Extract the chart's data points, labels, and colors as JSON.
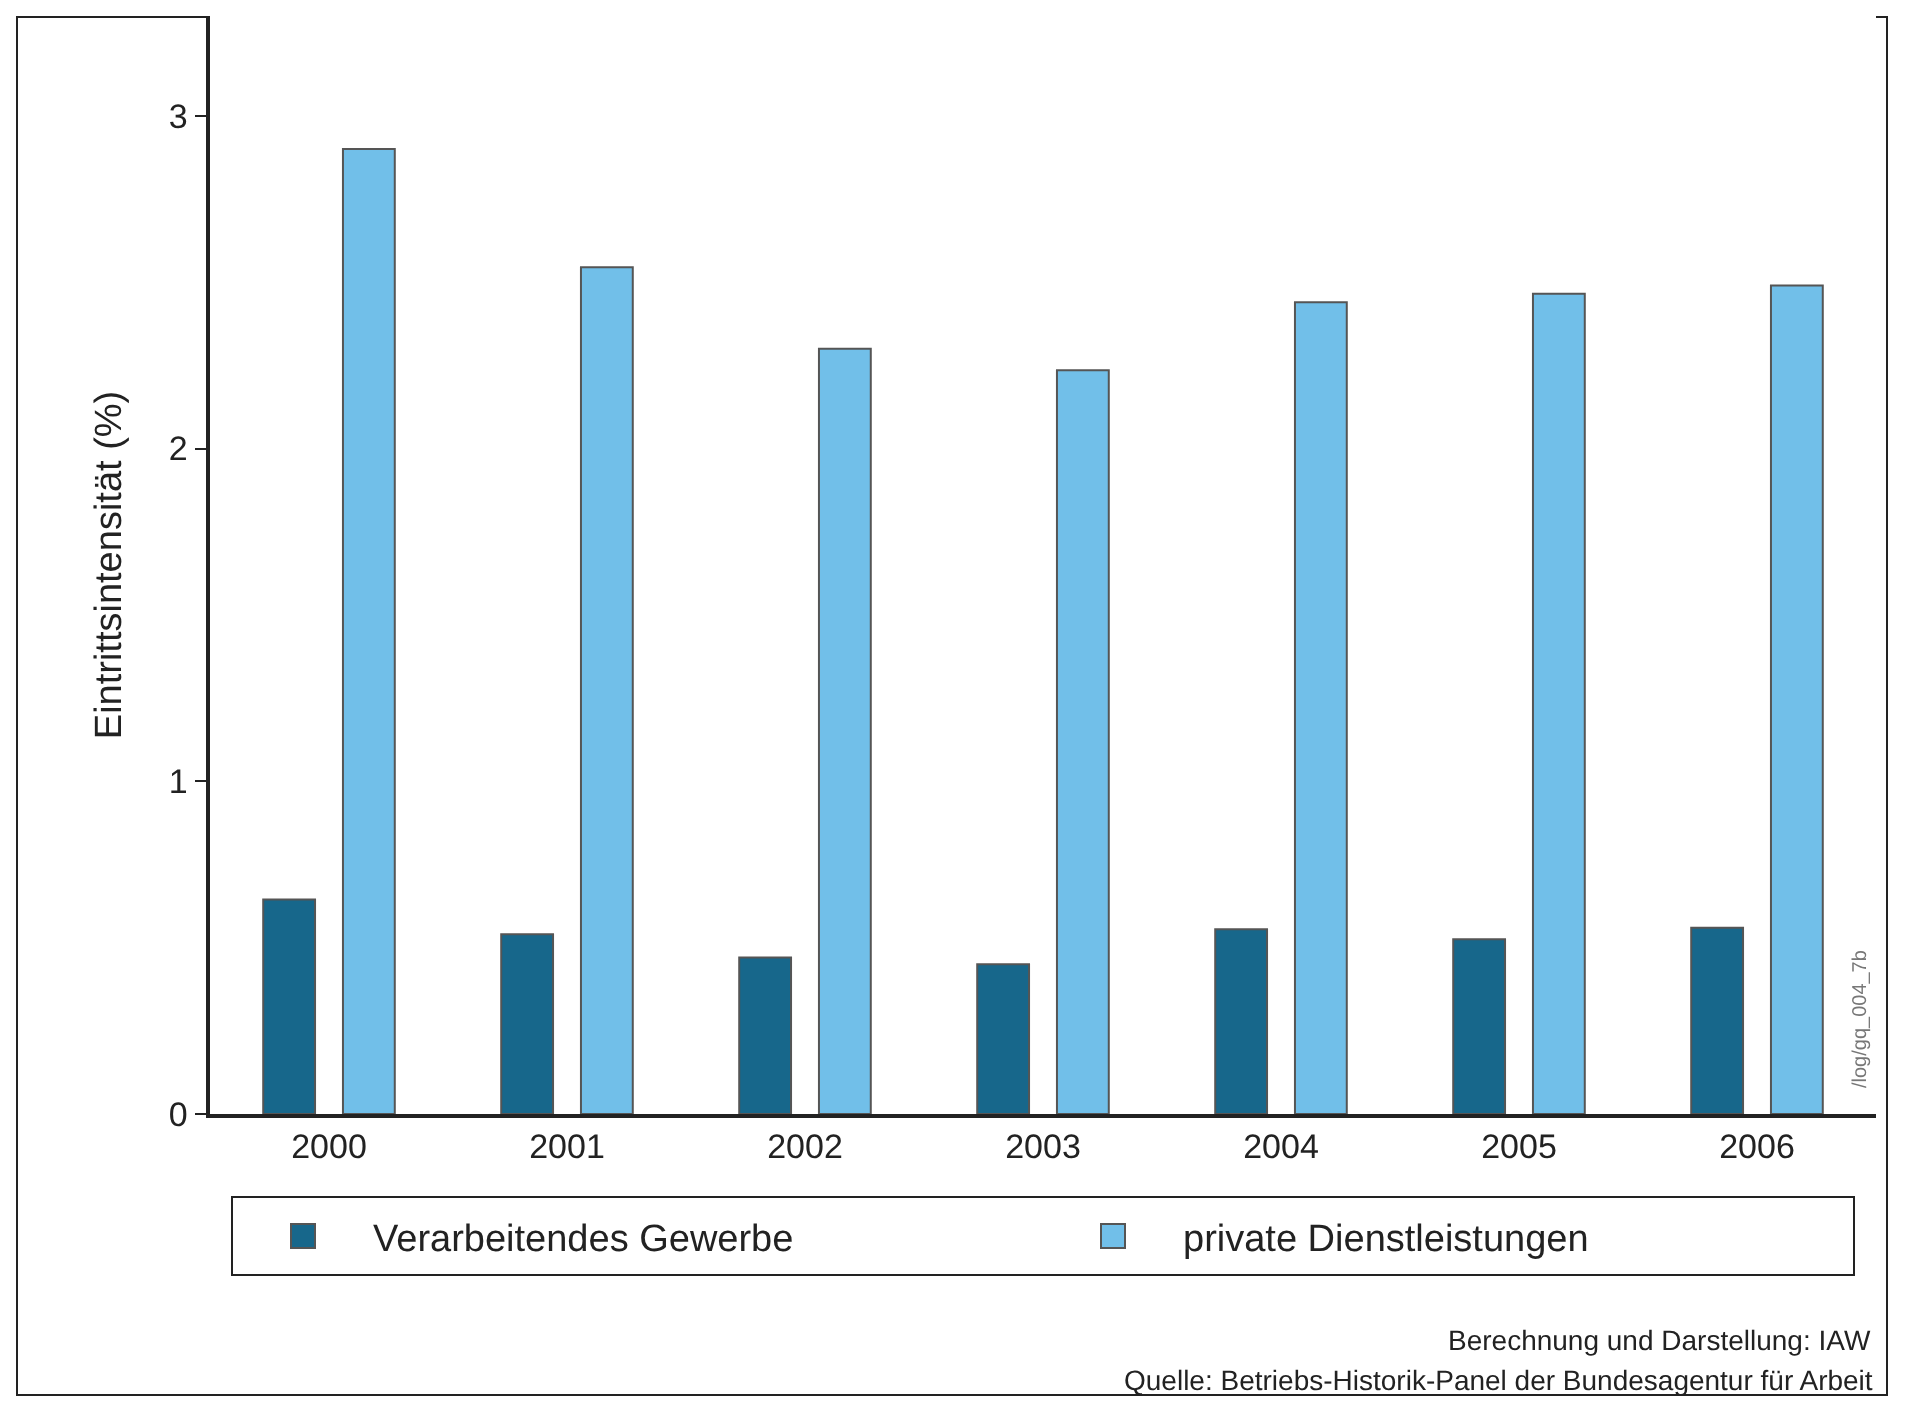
{
  "chart_data": {
    "type": "bar",
    "ylabel": "Eintrittsintensität (%)",
    "categories": [
      "2000",
      "2001",
      "2002",
      "2003",
      "2004",
      "2005",
      "2006"
    ],
    "series": [
      {
        "name": "Verarbeitendes Gewerbe",
        "color": "#17678b",
        "values": [
          0.645,
          0.54,
          0.47,
          0.45,
          0.555,
          0.525,
          0.56
        ]
      },
      {
        "name": "private Dienstleistungen",
        "color": "#71bfe9",
        "values": [
          2.9,
          2.545,
          2.3,
          2.235,
          2.44,
          2.465,
          2.49
        ]
      }
    ],
    "ylim": [
      0,
      3.3
    ],
    "yticks": [
      0,
      1,
      2,
      3
    ],
    "grid": false,
    "legend": "bottom",
    "annotations": [
      "/log/gq_004_7b",
      "Berechnung und Darstellung: IAW",
      "Quelle: Betriebs-Historik-Panel der Bundesagentur für Arbeit"
    ]
  }
}
